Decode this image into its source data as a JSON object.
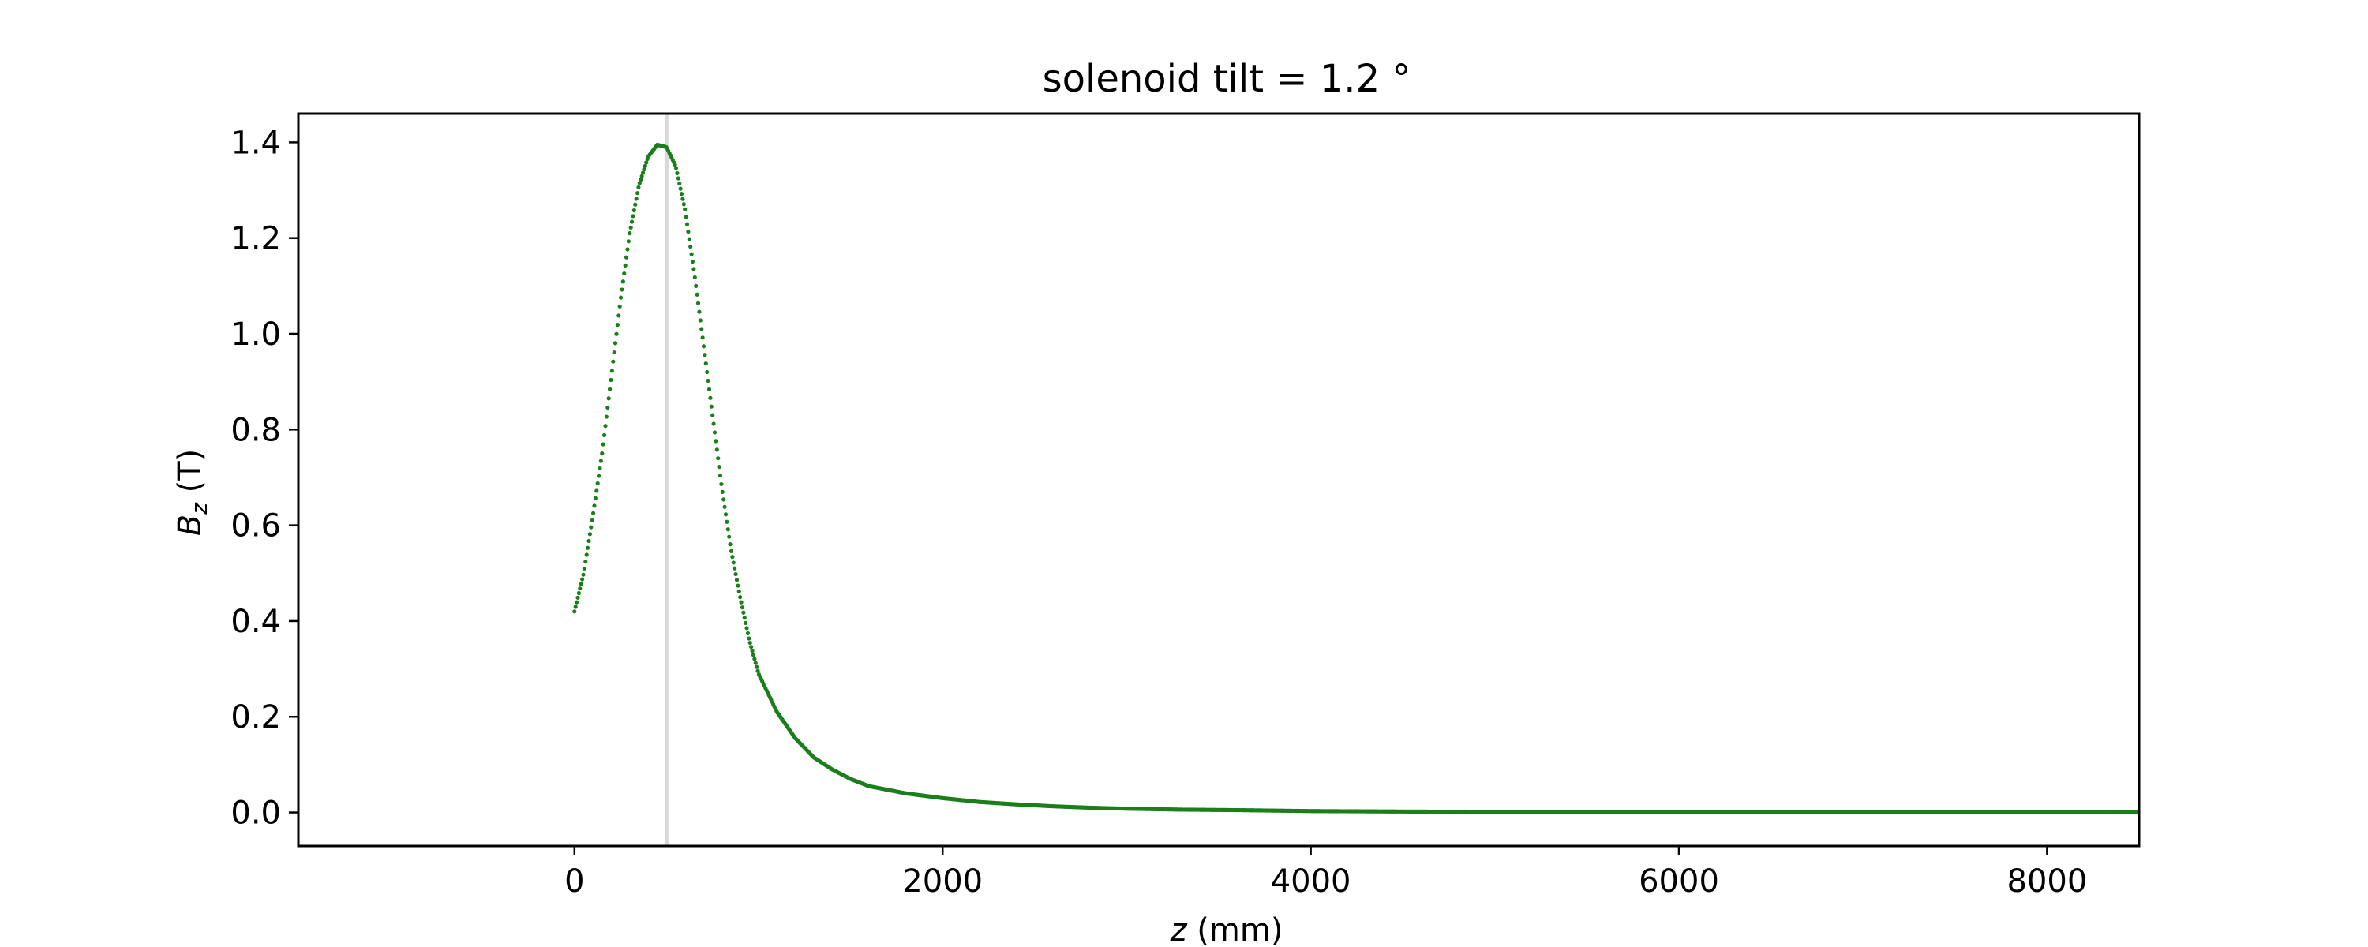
{
  "chart_data": {
    "type": "scatter",
    "title": "solenoid tilt = 1.2 °",
    "xlabel": {
      "var": "z",
      "unit": " (mm)"
    },
    "ylabel": {
      "var": "B",
      "sub": "z",
      "unit": " (T)"
    },
    "xlim": [
      -1500,
      8500
    ],
    "ylim": [
      -0.07,
      1.46
    ],
    "xticks": [
      0,
      2000,
      4000,
      6000,
      8000
    ],
    "yticks": [
      0.0,
      0.2,
      0.4,
      0.6,
      0.8,
      1.0,
      1.2,
      1.4
    ],
    "xtick_labels": [
      "0",
      "2000",
      "4000",
      "6000",
      "8000"
    ],
    "ytick_labels": [
      "0.0",
      "0.2",
      "0.4",
      "0.6",
      "0.8",
      "1.0",
      "1.2",
      "1.4"
    ],
    "marker_line_x": 500,
    "series": [
      {
        "marker": "dot",
        "x": [
          0,
          50,
          100,
          150,
          200,
          250,
          300,
          350,
          400,
          450,
          500,
          550,
          600,
          650,
          700,
          750,
          800,
          850,
          900,
          950,
          1000,
          1100,
          1200,
          1300,
          1400,
          1500,
          1600,
          1800,
          2000,
          2200,
          2400,
          2600,
          2800,
          3000,
          3300,
          3600,
          4000,
          4500,
          5000,
          5500,
          6000,
          6500,
          7000,
          7500,
          8000,
          8500
        ],
        "y": [
          0.42,
          0.5,
          0.62,
          0.75,
          0.91,
          1.07,
          1.21,
          1.31,
          1.37,
          1.395,
          1.39,
          1.35,
          1.26,
          1.13,
          0.98,
          0.83,
          0.68,
          0.55,
          0.45,
          0.36,
          0.29,
          0.21,
          0.155,
          0.115,
          0.09,
          0.07,
          0.055,
          0.04,
          0.03,
          0.022,
          0.017,
          0.013,
          0.01,
          0.008,
          0.006,
          0.005,
          0.003,
          0.002,
          0.0015,
          0.001,
          0.0008,
          0.0006,
          0.0004,
          0.0003,
          0.0002,
          0.0001
        ]
      }
    ],
    "colors": {
      "series": "#1a7f1a",
      "marker_line": "#d9d9d9",
      "axes": "#000000"
    },
    "grid": false,
    "legend": "none"
  }
}
